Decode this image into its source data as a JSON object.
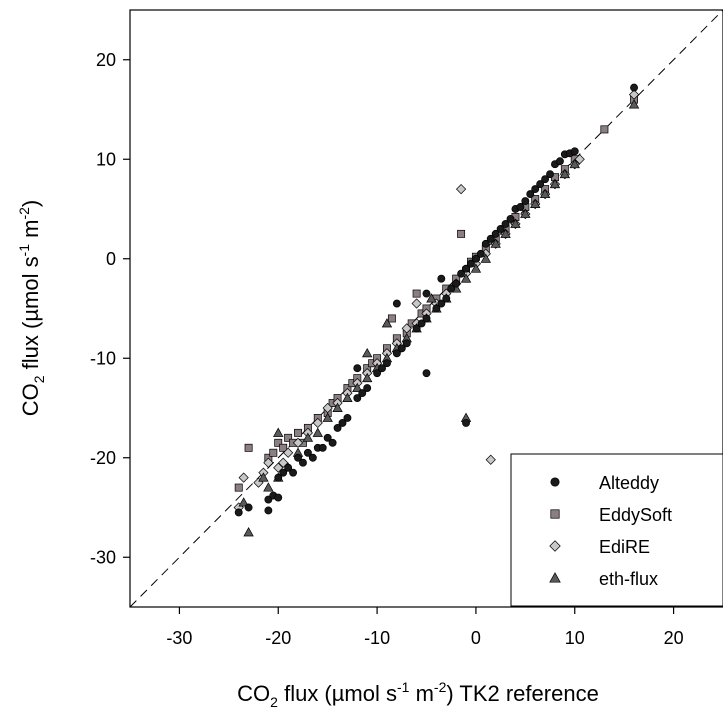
{
  "chart_data": {
    "type": "scatter",
    "xlabel": "CO2 flux (µmol s-1 m-2) TK2 reference",
    "ylabel": "CO2 flux (µmol s-1 m-2)",
    "xlim": [
      -35,
      25
    ],
    "ylim": [
      -35,
      25
    ],
    "xticks": [
      -30,
      -20,
      -10,
      0,
      10,
      20
    ],
    "yticks": [
      -30,
      -20,
      -10,
      0,
      10,
      20
    ],
    "grid": false,
    "reference_line": "1:1 dashed",
    "legend_position": "bottom-right",
    "series": [
      {
        "name": "Alteddy",
        "marker": "circle",
        "color": "#1a1a1a",
        "points": [
          [
            -24,
            -25.5
          ],
          [
            -23,
            -25
          ],
          [
            -21,
            -25.3
          ],
          [
            -21,
            -24.2
          ],
          [
            -20.5,
            -23.8
          ],
          [
            -20,
            -24
          ],
          [
            -20,
            -22
          ],
          [
            -19.5,
            -21.5
          ],
          [
            -19,
            -21
          ],
          [
            -18.5,
            -21.5
          ],
          [
            -18,
            -20
          ],
          [
            -17.5,
            -20.5
          ],
          [
            -17,
            -19.5
          ],
          [
            -16.5,
            -20
          ],
          [
            -16,
            -19
          ],
          [
            -15.5,
            -19
          ],
          [
            -15,
            -18
          ],
          [
            -14.5,
            -18.5
          ],
          [
            -14,
            -17
          ],
          [
            -13.5,
            -16.5
          ],
          [
            -13,
            -16
          ],
          [
            -12,
            -14
          ],
          [
            -11.5,
            -13.5
          ],
          [
            -11,
            -13
          ],
          [
            -10,
            -11.5
          ],
          [
            -9.5,
            -11
          ],
          [
            -9,
            -10.5
          ],
          [
            -8,
            -9.5
          ],
          [
            -7.5,
            -9
          ],
          [
            -7,
            -8.5
          ],
          [
            -6,
            -7
          ],
          [
            -5.5,
            -6.5
          ],
          [
            -5,
            -11.5
          ],
          [
            -5,
            -6
          ],
          [
            -4,
            -5
          ],
          [
            -3.5,
            -4.5
          ],
          [
            -3,
            -4
          ],
          [
            -2.5,
            -3
          ],
          [
            -2,
            -2.5
          ],
          [
            -1.5,
            -1.5
          ],
          [
            -1,
            -1
          ],
          [
            -1,
            -16.5
          ],
          [
            -0.5,
            -0.5
          ],
          [
            0,
            0
          ],
          [
            0.5,
            0.5
          ],
          [
            1,
            1.5
          ],
          [
            1.5,
            2
          ],
          [
            2,
            2.5
          ],
          [
            2.5,
            3
          ],
          [
            3,
            3.5
          ],
          [
            3.5,
            4
          ],
          [
            4,
            5
          ],
          [
            4.5,
            5.2
          ],
          [
            5,
            5.8
          ],
          [
            5.5,
            6.5
          ],
          [
            6,
            7
          ],
          [
            6.5,
            7.5
          ],
          [
            7,
            8
          ],
          [
            7.5,
            8.5
          ],
          [
            8,
            9.5
          ],
          [
            8.5,
            9.8
          ],
          [
            9,
            10.5
          ],
          [
            9.5,
            10.6
          ],
          [
            10,
            10.8
          ],
          [
            16,
            17.2
          ],
          [
            -8,
            -4.5
          ],
          [
            -5,
            -3.5
          ],
          [
            -3.5,
            -2
          ],
          [
            -12,
            -11
          ]
        ]
      },
      {
        "name": "EddySoft",
        "marker": "square",
        "color": "#8c7f83",
        "points": [
          [
            -24,
            -23
          ],
          [
            -23,
            -19
          ],
          [
            -21,
            -20
          ],
          [
            -20.5,
            -19.5
          ],
          [
            -20,
            -18.5
          ],
          [
            -19.5,
            -19
          ],
          [
            -19,
            -18
          ],
          [
            -18.5,
            -18.5
          ],
          [
            -18,
            -17.5
          ],
          [
            -17,
            -17
          ],
          [
            -16,
            -16
          ],
          [
            -15,
            -15.5
          ],
          [
            -14.5,
            -14.5
          ],
          [
            -14,
            -14
          ],
          [
            -13,
            -13
          ],
          [
            -12.5,
            -12.5
          ],
          [
            -12,
            -12
          ],
          [
            -11,
            -11
          ],
          [
            -10.5,
            -10.5
          ],
          [
            -10,
            -10
          ],
          [
            -9,
            -9
          ],
          [
            -8,
            -8
          ],
          [
            -7,
            -7.5
          ],
          [
            -6.5,
            -6.5
          ],
          [
            -6,
            -3.5
          ],
          [
            -5.5,
            -5.5
          ],
          [
            -5,
            -5
          ],
          [
            -4,
            -4
          ],
          [
            -3,
            -3
          ],
          [
            -2,
            -2
          ],
          [
            -1.5,
            2.5
          ],
          [
            -1,
            -1.2
          ],
          [
            -0.5,
            -0.3
          ],
          [
            0,
            0.2
          ],
          [
            1,
            1
          ],
          [
            2,
            2
          ],
          [
            3,
            3
          ],
          [
            4,
            4.2
          ],
          [
            5,
            5.2
          ],
          [
            6,
            6
          ],
          [
            7,
            7
          ],
          [
            8,
            8.2
          ],
          [
            9,
            9
          ],
          [
            10,
            10
          ],
          [
            13,
            13
          ],
          [
            16,
            16
          ],
          [
            -17.5,
            -18.5
          ],
          [
            -8.5,
            -6
          ]
        ]
      },
      {
        "name": "EdiRE",
        "marker": "diamond",
        "color": "#c8c8c8",
        "points": [
          [
            -24,
            -25
          ],
          [
            -23.5,
            -22
          ],
          [
            -21.5,
            -21.5
          ],
          [
            -21,
            -20.5
          ],
          [
            -20,
            -21
          ],
          [
            -19.5,
            -20.5
          ],
          [
            -19,
            -19.5
          ],
          [
            -18,
            -18.5
          ],
          [
            -17,
            -17.5
          ],
          [
            -16,
            -16.5
          ],
          [
            -15,
            -15
          ],
          [
            -14,
            -14.5
          ],
          [
            -13,
            -13.5
          ],
          [
            -12,
            -12.5
          ],
          [
            -11,
            -11.5
          ],
          [
            -10,
            -10.5
          ],
          [
            -9,
            -9.5
          ],
          [
            -8,
            -8.5
          ],
          [
            -7,
            -7
          ],
          [
            -6,
            -6.5
          ],
          [
            -5,
            -5.5
          ],
          [
            -4,
            -4.5
          ],
          [
            -3,
            -3.5
          ],
          [
            -2,
            -2.5
          ],
          [
            -1.5,
            7
          ],
          [
            -1,
            -1.5
          ],
          [
            0,
            -0.5
          ],
          [
            1,
            0.5
          ],
          [
            1.5,
            -20.2
          ],
          [
            2,
            1.5
          ],
          [
            3,
            2.5
          ],
          [
            4,
            3.5
          ],
          [
            5,
            4.5
          ],
          [
            6,
            5.5
          ],
          [
            7,
            6.5
          ],
          [
            8,
            7.5
          ],
          [
            9,
            8.5
          ],
          [
            10,
            9.5
          ],
          [
            10.5,
            10
          ],
          [
            16,
            16.5
          ],
          [
            -22,
            -22.5
          ],
          [
            -6,
            -4.5
          ]
        ]
      },
      {
        "name": "eth-flux",
        "marker": "triangle",
        "color": "#5a5a5a",
        "points": [
          [
            -23,
            -27.5
          ],
          [
            -23.5,
            -24.5
          ],
          [
            -21.5,
            -22
          ],
          [
            -21,
            -23
          ],
          [
            -20,
            -17.5
          ],
          [
            -20,
            -22
          ],
          [
            -19,
            -21
          ],
          [
            -18,
            -19.5
          ],
          [
            -17,
            -18
          ],
          [
            -16,
            -17.5
          ],
          [
            -15,
            -16
          ],
          [
            -14,
            -15
          ],
          [
            -13,
            -14
          ],
          [
            -12,
            -13
          ],
          [
            -11,
            -9.5
          ],
          [
            -11,
            -12
          ],
          [
            -10,
            -11
          ],
          [
            -9,
            -10
          ],
          [
            -9,
            -6.5
          ],
          [
            -8,
            -9
          ],
          [
            -7,
            -8
          ],
          [
            -6,
            -7
          ],
          [
            -5,
            -6
          ],
          [
            -4,
            -5
          ],
          [
            -3,
            -4
          ],
          [
            -2,
            -3
          ],
          [
            -1,
            -2
          ],
          [
            -1,
            -16
          ],
          [
            0,
            -1
          ],
          [
            1,
            0
          ],
          [
            2,
            1.5
          ],
          [
            3,
            2.5
          ],
          [
            4,
            3.5
          ],
          [
            5,
            4.5
          ],
          [
            6,
            5.5
          ],
          [
            7,
            6.5
          ],
          [
            8,
            7.5
          ],
          [
            9,
            8.5
          ],
          [
            10,
            9.5
          ],
          [
            16,
            15.5
          ],
          [
            -4.5,
            -4
          ]
        ]
      }
    ]
  }
}
